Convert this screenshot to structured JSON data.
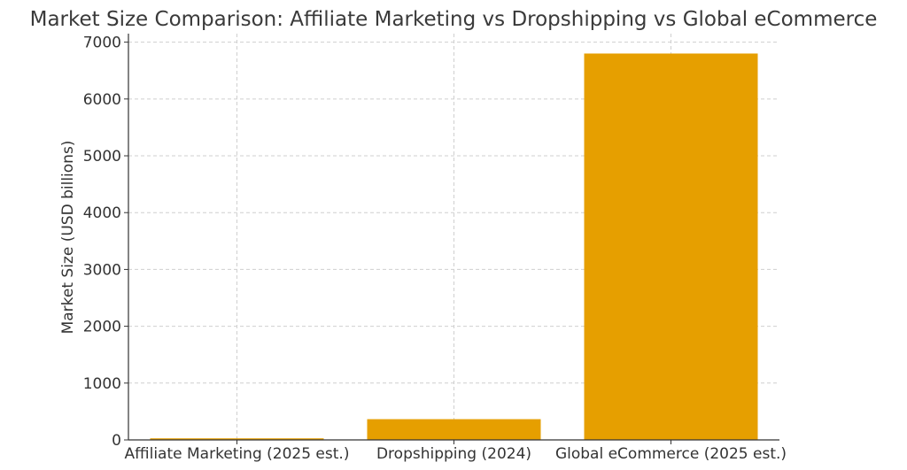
{
  "chart_data": {
    "type": "bar",
    "title": "Market Size Comparison: Affiliate Marketing vs Dropshipping vs Global eCommerce",
    "xlabel": "",
    "ylabel": "Market Size (USD billions)",
    "categories": [
      "Affiliate Marketing (2025 est.)",
      "Dropshipping (2024)",
      "Global eCommerce (2025 est.)"
    ],
    "values": [
      27.8,
      365,
      6800
    ],
    "ylim": [
      0,
      7150
    ],
    "yticks": [
      0,
      1000,
      2000,
      3000,
      4000,
      5000,
      6000,
      7000
    ],
    "bar_color": "#e69f00",
    "grid": true,
    "legend": "none"
  }
}
